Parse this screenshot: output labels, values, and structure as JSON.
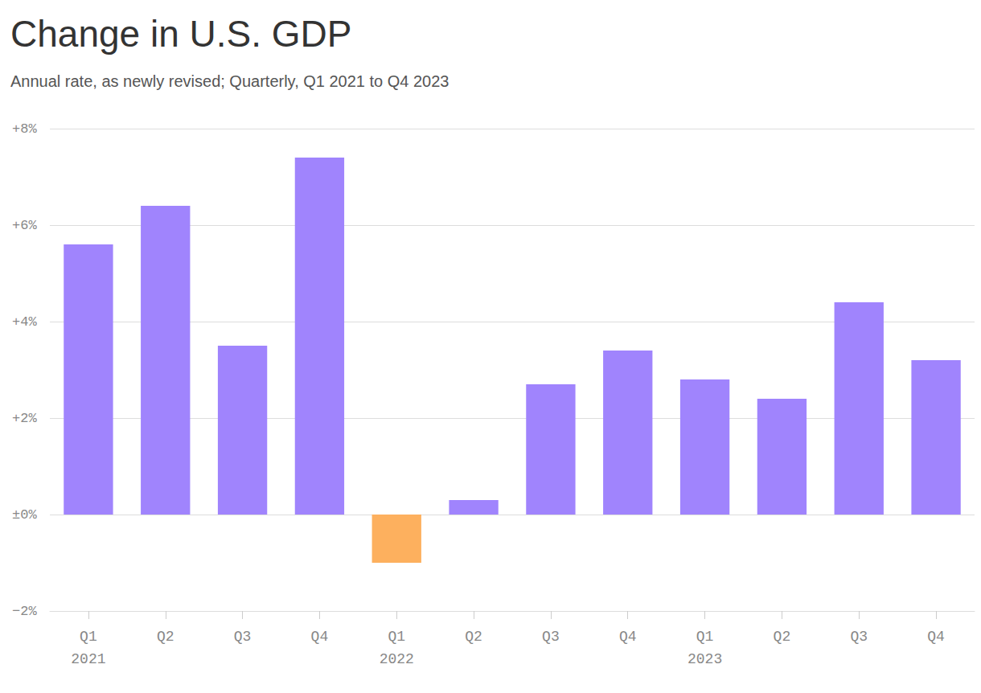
{
  "chart_data": {
    "type": "bar",
    "title": "Change in U.S. GDP",
    "subtitle": "Annual rate, as newly revised; Quarterly, Q1 2021 to Q4 2023",
    "categories": [
      "Q1\n2021",
      "Q2",
      "Q3",
      "Q4",
      "Q1\n2022",
      "Q2",
      "Q3",
      "Q4",
      "Q1\n2023",
      "Q2",
      "Q3",
      "Q4"
    ],
    "values": [
      5.6,
      6.4,
      3.5,
      7.4,
      -1.0,
      0.3,
      2.7,
      3.4,
      2.8,
      2.4,
      4.4,
      3.2
    ],
    "colors": [
      "#a084fd",
      "#a084fd",
      "#a084fd",
      "#a084fd",
      "#fdb05e",
      "#a084fd",
      "#a084fd",
      "#a084fd",
      "#a084fd",
      "#a084fd",
      "#a084fd",
      "#a084fd"
    ],
    "ylim": [
      -2,
      8
    ],
    "yticks": [
      {
        "value": -2,
        "label": "−2%"
      },
      {
        "value": 0,
        "label": "±0%"
      },
      {
        "value": 2,
        "label": "+2%"
      },
      {
        "value": 4,
        "label": "+4%"
      },
      {
        "value": 6,
        "label": "+6%"
      },
      {
        "value": 8,
        "label": "+8%"
      }
    ],
    "grid": true
  }
}
